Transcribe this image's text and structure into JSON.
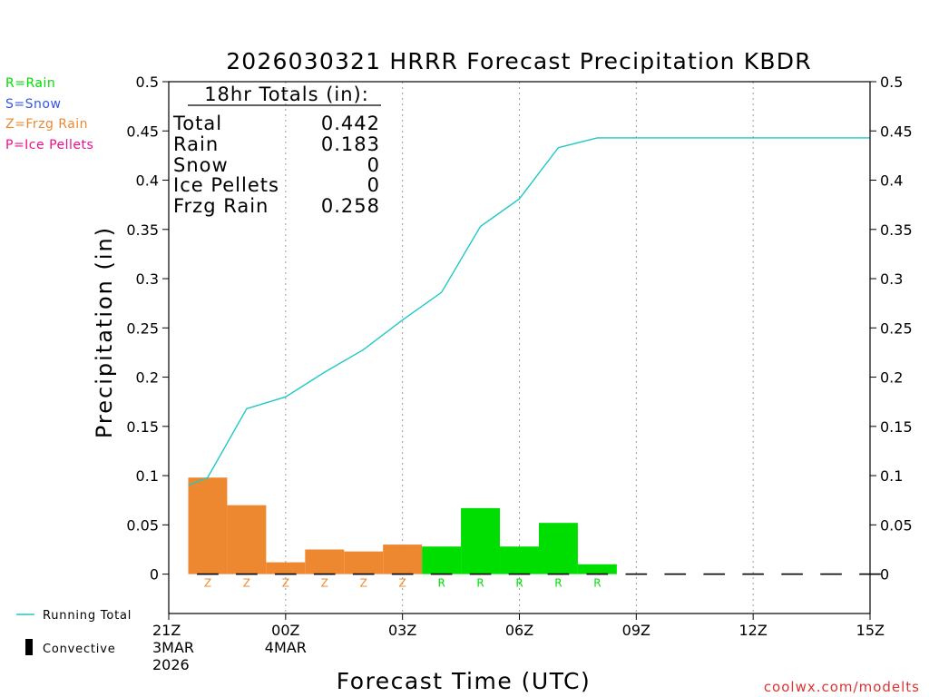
{
  "title": "2026030321 HRRR Forecast Precipitation KBDR",
  "ylabel": "Precipitation (in)",
  "xlabel": "Forecast Time (UTC)",
  "credit": "coolwx.com/modelts",
  "ptype_legend": [
    {
      "label": "R=Rain",
      "color": "#00dd00"
    },
    {
      "label": "S=Snow",
      "color": "#3355ee"
    },
    {
      "label": "Z=Frzg Rain",
      "color": "#ee8830"
    },
    {
      "label": "P=Ice Pellets",
      "color": "#ee1188"
    }
  ],
  "series_legend": [
    {
      "label": "Running Total",
      "color": "#20c8c8",
      "icon": "line-icon"
    },
    {
      "label": "Convective",
      "color": "#000000",
      "icon": "bar-icon"
    }
  ],
  "totals": {
    "heading": "18hr Totals (in):",
    "rows": [
      {
        "label": "Total",
        "value": "0.442"
      },
      {
        "label": "Rain",
        "value": "0.183"
      },
      {
        "label": "Snow",
        "value": "0"
      },
      {
        "label": "Ice Pellets",
        "value": "0"
      },
      {
        "label": "Frzg Rain",
        "value": "0.258"
      }
    ]
  },
  "chart_data": {
    "type": "bar",
    "title": "2026030321 HRRR Forecast Precipitation KBDR",
    "xlabel": "Forecast Time (UTC)",
    "ylabel": "Precipitation (in)",
    "x_unit": "hours after 21Z 3MAR 2026",
    "xlim": [
      0,
      18
    ],
    "ylim": [
      -0.04,
      0.5
    ],
    "yticks": [
      0,
      0.05,
      0.1,
      0.15,
      0.2,
      0.25,
      0.3,
      0.35,
      0.4,
      0.45,
      0.5
    ],
    "ytick_labels": [
      "0",
      "0.05",
      "0.1",
      "0.15",
      "0.2",
      "0.25",
      "0.3",
      "0.35",
      "0.4",
      "0.45",
      "0.5"
    ],
    "xticks": [
      {
        "x": 0,
        "lines": [
          "21Z",
          "3MAR",
          "2026"
        ]
      },
      {
        "x": 3,
        "lines": [
          "00Z",
          "4MAR"
        ]
      },
      {
        "x": 6,
        "lines": [
          "03Z"
        ]
      },
      {
        "x": 9,
        "lines": [
          "06Z"
        ]
      },
      {
        "x": 12,
        "lines": [
          "09Z"
        ]
      },
      {
        "x": 15,
        "lines": [
          "12Z"
        ]
      },
      {
        "x": 18,
        "lines": [
          "15Z"
        ]
      }
    ],
    "grid": "vertical dotted",
    "hourly_bars": {
      "x_centers": [
        1,
        2,
        3,
        4,
        5,
        6,
        7,
        8,
        9,
        10,
        11
      ],
      "values": [
        0.098,
        0.07,
        0.012,
        0.025,
        0.023,
        0.03,
        0.028,
        0.067,
        0.028,
        0.052,
        0.01
      ],
      "ptype": [
        "Z",
        "Z",
        "Z",
        "Z",
        "Z",
        "Z",
        "R",
        "R",
        "R",
        "R",
        "R"
      ],
      "convective_values": [
        0,
        0,
        0,
        0,
        0,
        0,
        0,
        0,
        0,
        0,
        0,
        0,
        0,
        0,
        0,
        0,
        0,
        0
      ]
    },
    "running_total": {
      "name": "Running Total",
      "x": [
        0.5,
        1,
        2,
        3,
        4,
        5,
        6,
        7,
        8,
        9,
        10,
        11,
        12,
        13,
        14,
        15,
        16,
        17,
        18
      ],
      "values": [
        0.09,
        0.098,
        0.168,
        0.18,
        0.205,
        0.228,
        0.258,
        0.286,
        0.353,
        0.381,
        0.433,
        0.443,
        0.443,
        0.443,
        0.443,
        0.443,
        0.443,
        0.443,
        0.443
      ]
    }
  }
}
